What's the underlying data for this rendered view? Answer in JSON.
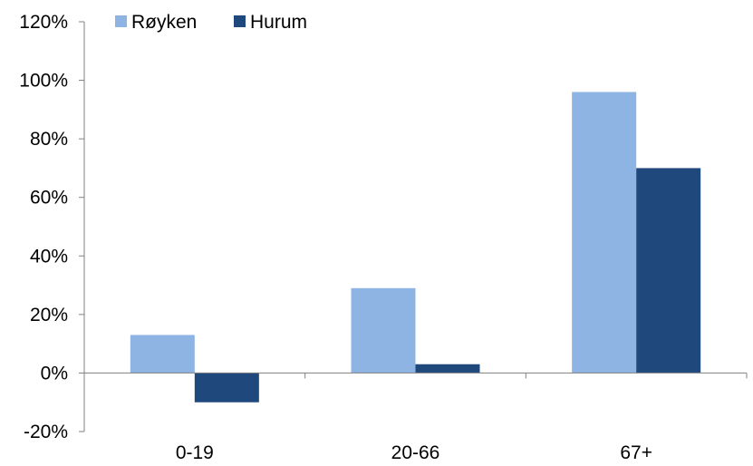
{
  "chart_data": {
    "type": "bar",
    "categories": [
      "0-19",
      "20-66",
      "67+"
    ],
    "series": [
      {
        "name": "Røyken",
        "values": [
          13,
          29,
          96
        ],
        "color": "#8db4e2"
      },
      {
        "name": "Hurum",
        "values": [
          -10,
          3,
          70
        ],
        "color": "#1f497d"
      }
    ],
    "ylim": [
      -20,
      120
    ],
    "yticks": [
      -20,
      0,
      20,
      40,
      60,
      80,
      100,
      120
    ],
    "ytick_labels": [
      "-20%",
      "0%",
      "20%",
      "40%",
      "60%",
      "80%",
      "100%",
      "120%"
    ],
    "grid": false,
    "legend_position": "top-left",
    "title": "",
    "xlabel": "",
    "ylabel": ""
  }
}
